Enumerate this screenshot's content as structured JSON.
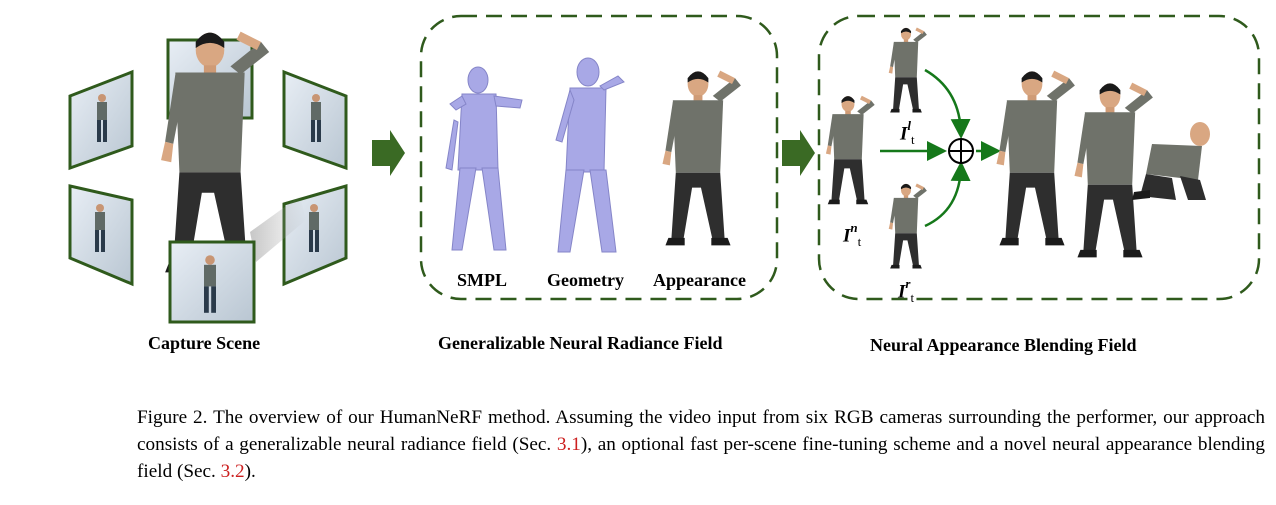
{
  "figure": {
    "sections": {
      "capture_scene": "Capture Scene",
      "gnrf": "Generalizable Neural Radiance Field",
      "nabf": "Neural Appearance Blending Field"
    },
    "mesh_labels": {
      "smpl": "SMPL",
      "geometry": "Geometry",
      "appearance": "Appearance"
    },
    "math_labels": {
      "left": {
        "base": "I",
        "sup": "l",
        "sub": "t"
      },
      "novel": {
        "base": "I",
        "sup": "n",
        "sub": "t"
      },
      "right": {
        "base": "I",
        "sup": "r",
        "sub": "t"
      }
    },
    "colors": {
      "frame_green": "#2f5a1c",
      "arrow_green": "#3a6a24",
      "blend_green": "#15781a",
      "mesh_lavender": "#a8a8e6",
      "shirt": "#6f726a",
      "pants": "#2e2e2e",
      "skin": "#d9a782"
    }
  },
  "caption": {
    "prefix": "Figure 2.  The overview of our HumanNeRF method.  Assuming the video input from six RGB cameras surrounding the performer, our approach consists of a generalizable neural radiance field (Sec. ",
    "ref1": "3.1",
    "middle": "), an optional fast per-scene fine-tuning scheme and a novel neural appearance blending field (Sec. ",
    "ref2": "3.2",
    "suffix": ")."
  }
}
